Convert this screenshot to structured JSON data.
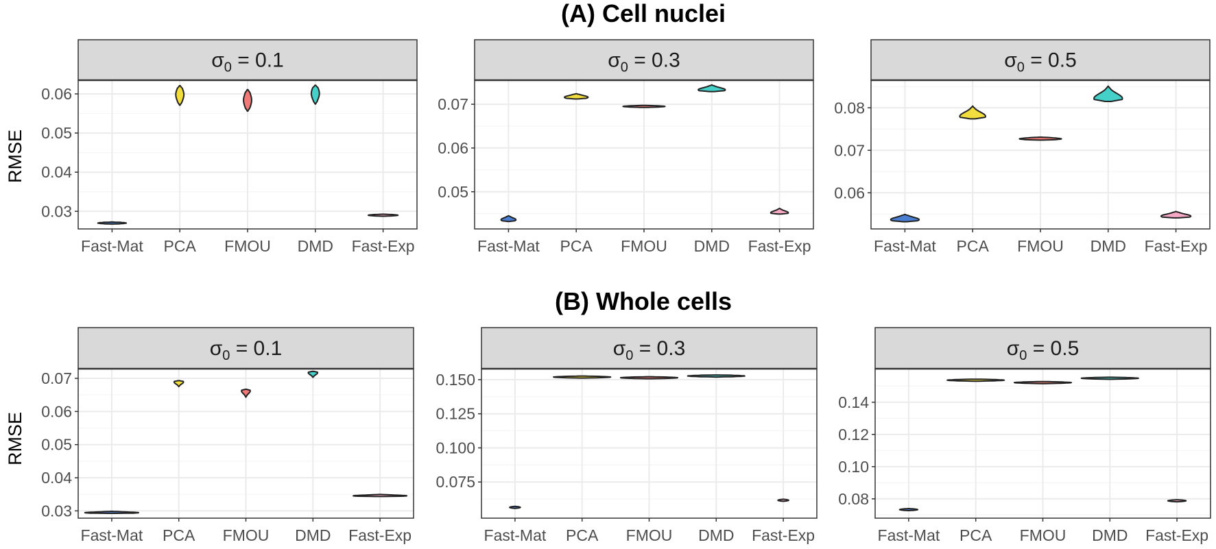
{
  "sections": [
    {
      "title": "(A) Cell nuclei",
      "y_label": "RMSE"
    },
    {
      "title": "(B) Whole cells",
      "y_label": "RMSE"
    }
  ],
  "colors": {
    "Fast-Mat": "#4a7fd4",
    "PCA": "#f2dd3e",
    "FMOU": "#f07a78",
    "DMD": "#45d1c9",
    "Fast-Exp": "#f5a8c4",
    "strip_bg": "#d9d9d9",
    "grid_major": "#ebebeb",
    "grid_minor": "#f5f5f5",
    "panel_border": "#333333"
  },
  "chart_data": [
    {
      "type": "violin",
      "section": 0,
      "facet_label": "σ0 = 0.1",
      "sigma": "0",
      "sigma_value": "0.1",
      "categories": [
        "Fast-Mat",
        "PCA",
        "FMOU",
        "DMD",
        "Fast-Exp"
      ],
      "ylim": [
        0.0255,
        0.0635
      ],
      "yticks": [
        0.03,
        0.04,
        0.05,
        0.06
      ],
      "ytick_labels": [
        "0.03",
        "0.04",
        "0.05",
        "0.06"
      ],
      "ylabel": "RMSE",
      "violins": [
        {
          "cat": "Fast-Mat",
          "min": 0.0268,
          "max": 0.0272,
          "peak": 0.027,
          "maxw": 0.42
        },
        {
          "cat": "PCA",
          "min": 0.0571,
          "max": 0.0621,
          "peak": 0.0598,
          "maxw": 0.12
        },
        {
          "cat": "FMOU",
          "min": 0.0556,
          "max": 0.0611,
          "peak": 0.0584,
          "maxw": 0.12
        },
        {
          "cat": "DMD",
          "min": 0.0574,
          "max": 0.0622,
          "peak": 0.0601,
          "maxw": 0.12
        },
        {
          "cat": "Fast-Exp",
          "min": 0.0288,
          "max": 0.0292,
          "peak": 0.029,
          "maxw": 0.44
        }
      ]
    },
    {
      "type": "violin",
      "section": 0,
      "facet_label": "σ0 = 0.3",
      "sigma": "0",
      "sigma_value": "0.3",
      "categories": [
        "Fast-Mat",
        "PCA",
        "FMOU",
        "DMD",
        "Fast-Exp"
      ],
      "ylim": [
        0.0415,
        0.0755
      ],
      "yticks": [
        0.05,
        0.06,
        0.07
      ],
      "ytick_labels": [
        "0.05",
        "0.06",
        "0.07"
      ],
      "ylabel": "",
      "violins": [
        {
          "cat": "Fast-Mat",
          "min": 0.0432,
          "max": 0.0445,
          "peak": 0.0436,
          "maxw": 0.22
        },
        {
          "cat": "PCA",
          "min": 0.0712,
          "max": 0.0724,
          "peak": 0.0716,
          "maxw": 0.35
        },
        {
          "cat": "FMOU",
          "min": 0.0693,
          "max": 0.0697,
          "peak": 0.0695,
          "maxw": 0.62
        },
        {
          "cat": "DMD",
          "min": 0.0729,
          "max": 0.0744,
          "peak": 0.0733,
          "maxw": 0.4
        },
        {
          "cat": "Fast-Exp",
          "min": 0.0449,
          "max": 0.0462,
          "peak": 0.0452,
          "maxw": 0.26
        }
      ]
    },
    {
      "type": "violin",
      "section": 0,
      "facet_label": "σ0 = 0.5",
      "sigma": "0",
      "sigma_value": "0.5",
      "categories": [
        "Fast-Mat",
        "PCA",
        "FMOU",
        "DMD",
        "Fast-Exp"
      ],
      "ylim": [
        0.0515,
        0.0865
      ],
      "yticks": [
        0.06,
        0.07,
        0.08
      ],
      "ytick_labels": [
        "0.06",
        "0.07",
        "0.08"
      ],
      "ylabel": "",
      "violins": [
        {
          "cat": "Fast-Mat",
          "min": 0.0532,
          "max": 0.0549,
          "peak": 0.0537,
          "maxw": 0.42
        },
        {
          "cat": "PCA",
          "min": 0.0774,
          "max": 0.0804,
          "peak": 0.078,
          "maxw": 0.38
        },
        {
          "cat": "FMOU",
          "min": 0.0724,
          "max": 0.0731,
          "peak": 0.0727,
          "maxw": 0.62
        },
        {
          "cat": "DMD",
          "min": 0.0815,
          "max": 0.0851,
          "peak": 0.0822,
          "maxw": 0.42
        },
        {
          "cat": "Fast-Exp",
          "min": 0.0541,
          "max": 0.0556,
          "peak": 0.0545,
          "maxw": 0.44
        }
      ]
    },
    {
      "type": "violin",
      "section": 1,
      "facet_label": "σ0 = 0.1",
      "sigma": "0",
      "sigma_value": "0.1",
      "categories": [
        "Fast-Mat",
        "PCA",
        "FMOU",
        "DMD",
        "Fast-Exp"
      ],
      "ylim": [
        0.0278,
        0.0729
      ],
      "yticks": [
        0.03,
        0.04,
        0.05,
        0.06,
        0.07
      ],
      "ytick_labels": [
        "0.03",
        "0.04",
        "0.05",
        "0.06",
        "0.07"
      ],
      "ylabel": "RMSE",
      "violins": [
        {
          "cat": "Fast-Mat",
          "min": 0.0294,
          "max": 0.0297,
          "peak": 0.0295,
          "maxw": 0.8
        },
        {
          "cat": "PCA",
          "min": 0.0675,
          "max": 0.0693,
          "peak": 0.0689,
          "maxw": 0.14
        },
        {
          "cat": "FMOU",
          "min": 0.0643,
          "max": 0.0667,
          "peak": 0.0662,
          "maxw": 0.13
        },
        {
          "cat": "DMD",
          "min": 0.0703,
          "max": 0.0721,
          "peak": 0.0717,
          "maxw": 0.14
        },
        {
          "cat": "Fast-Exp",
          "min": 0.0345,
          "max": 0.0348,
          "peak": 0.0346,
          "maxw": 0.8
        }
      ]
    },
    {
      "type": "violin",
      "section": 1,
      "facet_label": "σ0 = 0.3",
      "sigma": "0",
      "sigma_value": "0.3",
      "categories": [
        "Fast-Mat",
        "PCA",
        "FMOU",
        "DMD",
        "Fast-Exp"
      ],
      "ylim": [
        0.0485,
        0.158
      ],
      "yticks": [
        0.075,
        0.1,
        0.125,
        0.15
      ],
      "ytick_labels": [
        "0.075",
        "0.100",
        "0.125",
        "0.150"
      ],
      "ylabel": "",
      "violins": [
        {
          "cat": "Fast-Mat",
          "min": 0.0561,
          "max": 0.0567,
          "peak": 0.0564,
          "maxw": 0.16
        },
        {
          "cat": "PCA",
          "min": 0.1516,
          "max": 0.1522,
          "peak": 0.1519,
          "maxw": 0.85
        },
        {
          "cat": "FMOU",
          "min": 0.1511,
          "max": 0.1517,
          "peak": 0.1514,
          "maxw": 0.85
        },
        {
          "cat": "DMD",
          "min": 0.1524,
          "max": 0.153,
          "peak": 0.1527,
          "maxw": 0.85
        },
        {
          "cat": "Fast-Exp",
          "min": 0.0613,
          "max": 0.0619,
          "peak": 0.0616,
          "maxw": 0.16
        }
      ]
    },
    {
      "type": "violin",
      "section": 1,
      "facet_label": "σ0 = 0.5",
      "sigma": "0",
      "sigma_value": "0.5",
      "categories": [
        "Fast-Mat",
        "PCA",
        "FMOU",
        "DMD",
        "Fast-Exp"
      ],
      "ylim": [
        0.068,
        0.1608
      ],
      "yticks": [
        0.08,
        0.1,
        0.12,
        0.14
      ],
      "ytick_labels": [
        "0.08",
        "0.10",
        "0.12",
        "0.14"
      ],
      "ylabel": "",
      "violins": [
        {
          "cat": "Fast-Mat",
          "min": 0.0728,
          "max": 0.0738,
          "peak": 0.0733,
          "maxw": 0.27
        },
        {
          "cat": "PCA",
          "min": 0.1533,
          "max": 0.1541,
          "peak": 0.1537,
          "maxw": 0.85
        },
        {
          "cat": "FMOU",
          "min": 0.1518,
          "max": 0.1526,
          "peak": 0.1522,
          "maxw": 0.85
        },
        {
          "cat": "DMD",
          "min": 0.1545,
          "max": 0.1553,
          "peak": 0.1549,
          "maxw": 0.85
        },
        {
          "cat": "Fast-Exp",
          "min": 0.0783,
          "max": 0.0793,
          "peak": 0.0788,
          "maxw": 0.27
        }
      ]
    }
  ]
}
